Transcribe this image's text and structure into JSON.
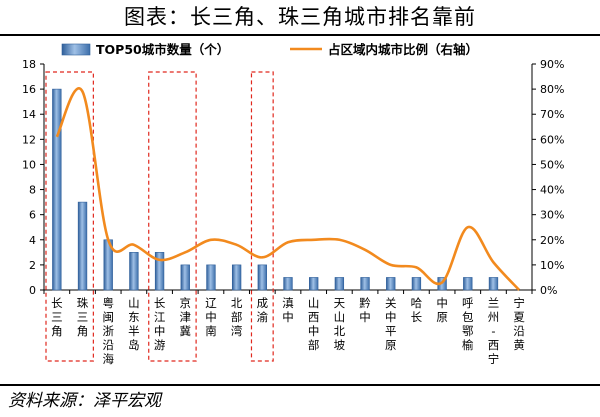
{
  "page": {
    "title": "图表：长三角、珠三角城市排名靠前",
    "source": "资料来源：泽平宏观"
  },
  "chart_data": {
    "type": "bar",
    "categories": [
      "长三角",
      "珠三角",
      "粤闽浙沿海",
      "山东半岛",
      "长江中游",
      "京津冀",
      "辽中南",
      "北部湾",
      "成渝",
      "滇中",
      "山西中部",
      "天山北坡",
      "黔中",
      "关中平原",
      "哈长",
      "中原",
      "呼包鄂榆",
      "兰州-西宁",
      "宁夏沿黄"
    ],
    "series": [
      {
        "name": "TOP50城市数量（个）",
        "type": "bar",
        "axis": "left",
        "color": "#4a7ebb",
        "values": [
          16,
          7,
          4,
          3,
          3,
          2,
          2,
          2,
          2,
          1,
          1,
          1,
          1,
          1,
          1,
          1,
          1,
          1,
          0
        ]
      },
      {
        "name": "占区域内城市比例（右轴）",
        "type": "line",
        "axis": "right",
        "color": "#f28a1e",
        "values": [
          61,
          79,
          20,
          18,
          12,
          15,
          20,
          18,
          13,
          19,
          20,
          20,
          16,
          10,
          9,
          3,
          25,
          11,
          0
        ]
      }
    ],
    "y_left": {
      "min": 0,
      "max": 18,
      "ticks": [
        0,
        2,
        4,
        6,
        8,
        10,
        12,
        14,
        16,
        18
      ]
    },
    "y_right": {
      "min": 0,
      "max": 90,
      "ticks": [
        "0%",
        "10%",
        "20%",
        "30%",
        "40%",
        "50%",
        "60%",
        "70%",
        "80%",
        "90%"
      ]
    },
    "highlight_groups": [
      [
        0,
        1
      ],
      [
        4,
        5
      ],
      [
        8,
        8
      ]
    ],
    "legend_position": "top"
  }
}
